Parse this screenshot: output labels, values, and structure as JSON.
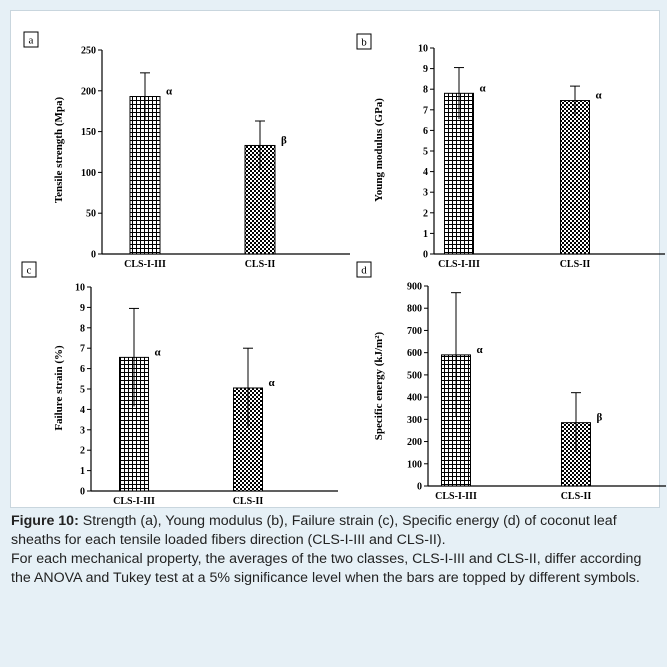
{
  "figure": {
    "caption_label": "Figure 10:",
    "caption_text": "Strength (a), Young modulus (b), Failure strain (c), Specific energy (d) of coconut leaf sheaths for each tensile loaded fibers direction (CLS-I-III and CLS-II).",
    "caption_note": "For each mechanical property, the averages of the two classes, CLS-I-III and CLS-II, differ according the ANOVA and Tukey test at a 5% significance level when the bars are topped by different symbols."
  },
  "colors": {
    "background": "#e6f0f6",
    "panel": "#ffffff",
    "bar_pattern": "#000000"
  },
  "chart_data": [
    {
      "type": "bar",
      "panel_label": "a",
      "categories": [
        "CLS-I-III",
        "CLS-II"
      ],
      "values": [
        193,
        133
      ],
      "errors": [
        29,
        30
      ],
      "letters": [
        "α",
        "β"
      ],
      "ylabel": "Tensile strength  (Mpa)",
      "ylim": [
        0,
        250
      ],
      "yticks": [
        0,
        50,
        100,
        150,
        200,
        250
      ]
    },
    {
      "type": "bar",
      "panel_label": "b",
      "categories": [
        "CLS-I-III",
        "CLS-II"
      ],
      "values": [
        7.8,
        7.45
      ],
      "errors": [
        1.25,
        0.7
      ],
      "letters": [
        "α",
        "α"
      ],
      "ylabel": "Young modulus  (GPa)",
      "ylim": [
        0,
        10
      ],
      "yticks": [
        0,
        1,
        2,
        3,
        4,
        5,
        6,
        7,
        8,
        9,
        10
      ]
    },
    {
      "type": "bar",
      "panel_label": "c",
      "categories": [
        "CLS-I-III",
        "CLS-II"
      ],
      "values": [
        6.55,
        5.05
      ],
      "errors": [
        2.4,
        1.95
      ],
      "letters": [
        "α",
        "α"
      ],
      "ylabel": "Failure strain  (%)",
      "ylim": [
        0,
        10
      ],
      "yticks": [
        0,
        1,
        2,
        3,
        4,
        5,
        6,
        7,
        8,
        9,
        10
      ]
    },
    {
      "type": "bar",
      "panel_label": "d",
      "categories": [
        "CLS-I-III",
        "CLS-II"
      ],
      "values": [
        590,
        285
      ],
      "errors": [
        280,
        135
      ],
      "letters": [
        "α",
        "β"
      ],
      "ylabel": "Specific energy  (kJ/m²)",
      "ylim": [
        0,
        900
      ],
      "yticks": [
        0,
        100,
        200,
        300,
        400,
        500,
        600,
        700,
        800,
        900
      ]
    }
  ]
}
